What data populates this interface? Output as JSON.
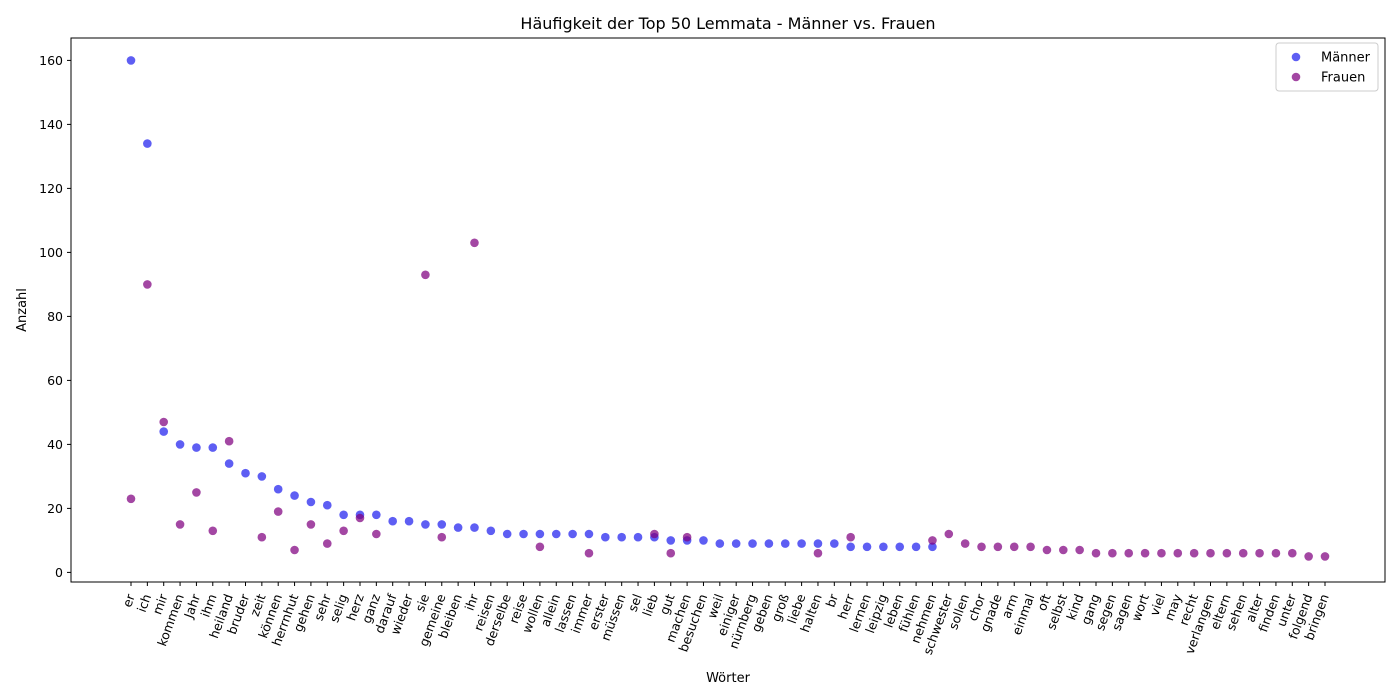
{
  "chart_data": {
    "type": "scatter",
    "title": "Häufigkeit der Top 50 Lemmata - Männer vs. Frauen",
    "xlabel": "Wörter",
    "ylabel": "Anzahl",
    "ylim": [
      -3,
      167
    ],
    "yticks": [
      0,
      20,
      40,
      60,
      80,
      100,
      120,
      140,
      160
    ],
    "grid": false,
    "legend_position": "top-right",
    "categories": [
      "er",
      "ich",
      "mir",
      "kommen",
      "Jahr",
      "ihm",
      "heiland",
      "bruder",
      "zeit",
      "können",
      "herrnhut",
      "gehen",
      "sehr",
      "selig",
      "herz",
      "ganz",
      "darauf",
      "wieder",
      "sie",
      "gemeine",
      "bleiben",
      "ihr",
      "reisen",
      "derselbe",
      "reise",
      "wollen",
      "allein",
      "lassen",
      "immer",
      "erster",
      "müssen",
      "sel",
      "lieb",
      "gut",
      "machen",
      "besuchen",
      "weil",
      "einiger",
      "nürnberg",
      "geben",
      "groß",
      "liebe",
      "halten",
      "br",
      "herr",
      "lernen",
      "leipzig",
      "leben",
      "fühlen",
      "nehmen",
      "schwester",
      "sollen",
      "chor",
      "gnade",
      "arm",
      "einmal",
      "oft",
      "selbst",
      "kind",
      "gang",
      "segen",
      "sagen",
      "wort",
      "viel",
      "may",
      "recht",
      "verlangen",
      "eltern",
      "sehen",
      "alter",
      "finden",
      "unter",
      "folgend",
      "bringen"
    ],
    "series": [
      {
        "name": "Männer",
        "color": "#2020ee",
        "points": [
          {
            "x": "er",
            "y": 160
          },
          {
            "x": "ich",
            "y": 134
          },
          {
            "x": "mir",
            "y": 44
          },
          {
            "x": "kommen",
            "y": 40
          },
          {
            "x": "Jahr",
            "y": 39
          },
          {
            "x": "ihm",
            "y": 39
          },
          {
            "x": "heiland",
            "y": 34
          },
          {
            "x": "bruder",
            "y": 31
          },
          {
            "x": "zeit",
            "y": 30
          },
          {
            "x": "können",
            "y": 26
          },
          {
            "x": "herrnhut",
            "y": 24
          },
          {
            "x": "gehen",
            "y": 22
          },
          {
            "x": "sehr",
            "y": 21
          },
          {
            "x": "selig",
            "y": 18
          },
          {
            "x": "herz",
            "y": 18
          },
          {
            "x": "ganz",
            "y": 18
          },
          {
            "x": "darauf",
            "y": 16
          },
          {
            "x": "wieder",
            "y": 16
          },
          {
            "x": "sie",
            "y": 15
          },
          {
            "x": "gemeine",
            "y": 15
          },
          {
            "x": "bleiben",
            "y": 14
          },
          {
            "x": "ihr",
            "y": 14
          },
          {
            "x": "reisen",
            "y": 13
          },
          {
            "x": "derselbe",
            "y": 12
          },
          {
            "x": "reise",
            "y": 12
          },
          {
            "x": "wollen",
            "y": 12
          },
          {
            "x": "allein",
            "y": 12
          },
          {
            "x": "lassen",
            "y": 12
          },
          {
            "x": "immer",
            "y": 12
          },
          {
            "x": "erster",
            "y": 11
          },
          {
            "x": "müssen",
            "y": 11
          },
          {
            "x": "sel",
            "y": 11
          },
          {
            "x": "lieb",
            "y": 11
          },
          {
            "x": "gut",
            "y": 10
          },
          {
            "x": "machen",
            "y": 10
          },
          {
            "x": "besuchen",
            "y": 10
          },
          {
            "x": "weil",
            "y": 9
          },
          {
            "x": "einiger",
            "y": 9
          },
          {
            "x": "nürnberg",
            "y": 9
          },
          {
            "x": "geben",
            "y": 9
          },
          {
            "x": "groß",
            "y": 9
          },
          {
            "x": "liebe",
            "y": 9
          },
          {
            "x": "halten",
            "y": 9
          },
          {
            "x": "br",
            "y": 9
          },
          {
            "x": "herr",
            "y": 8
          },
          {
            "x": "lernen",
            "y": 8
          },
          {
            "x": "leipzig",
            "y": 8
          },
          {
            "x": "leben",
            "y": 8
          },
          {
            "x": "fühlen",
            "y": 8
          },
          {
            "x": "nehmen",
            "y": 8
          }
        ]
      },
      {
        "name": "Frauen",
        "color": "#800080",
        "points": [
          {
            "x": "er",
            "y": 23
          },
          {
            "x": "ich",
            "y": 90
          },
          {
            "x": "mir",
            "y": 47
          },
          {
            "x": "kommen",
            "y": 15
          },
          {
            "x": "Jahr",
            "y": 25
          },
          {
            "x": "ihm",
            "y": 13
          },
          {
            "x": "heiland",
            "y": 41
          },
          {
            "x": "zeit",
            "y": 11
          },
          {
            "x": "können",
            "y": 19
          },
          {
            "x": "herrnhut",
            "y": 7
          },
          {
            "x": "gehen",
            "y": 15
          },
          {
            "x": "sehr",
            "y": 9
          },
          {
            "x": "selig",
            "y": 13
          },
          {
            "x": "herz",
            "y": 17
          },
          {
            "x": "ganz",
            "y": 12
          },
          {
            "x": "sie",
            "y": 93
          },
          {
            "x": "gemeine",
            "y": 11
          },
          {
            "x": "ihr",
            "y": 103
          },
          {
            "x": "wollen",
            "y": 8
          },
          {
            "x": "immer",
            "y": 6
          },
          {
            "x": "lieb",
            "y": 12
          },
          {
            "x": "gut",
            "y": 6
          },
          {
            "x": "machen",
            "y": 11
          },
          {
            "x": "halten",
            "y": 6
          },
          {
            "x": "herr",
            "y": 11
          },
          {
            "x": "nehmen",
            "y": 10
          },
          {
            "x": "schwester",
            "y": 12
          },
          {
            "x": "sollen",
            "y": 9
          },
          {
            "x": "chor",
            "y": 8
          },
          {
            "x": "gnade",
            "y": 8
          },
          {
            "x": "arm",
            "y": 8
          },
          {
            "x": "einmal",
            "y": 8
          },
          {
            "x": "oft",
            "y": 7
          },
          {
            "x": "selbst",
            "y": 7
          },
          {
            "x": "kind",
            "y": 7
          },
          {
            "x": "gang",
            "y": 6
          },
          {
            "x": "segen",
            "y": 6
          },
          {
            "x": "sagen",
            "y": 6
          },
          {
            "x": "wort",
            "y": 6
          },
          {
            "x": "viel",
            "y": 6
          },
          {
            "x": "may",
            "y": 6
          },
          {
            "x": "recht",
            "y": 6
          },
          {
            "x": "verlangen",
            "y": 6
          },
          {
            "x": "eltern",
            "y": 6
          },
          {
            "x": "sehen",
            "y": 6
          },
          {
            "x": "alter",
            "y": 6
          },
          {
            "x": "finden",
            "y": 6
          },
          {
            "x": "unter",
            "y": 6
          },
          {
            "x": "folgend",
            "y": 5
          },
          {
            "x": "bringen",
            "y": 5
          }
        ]
      }
    ]
  }
}
